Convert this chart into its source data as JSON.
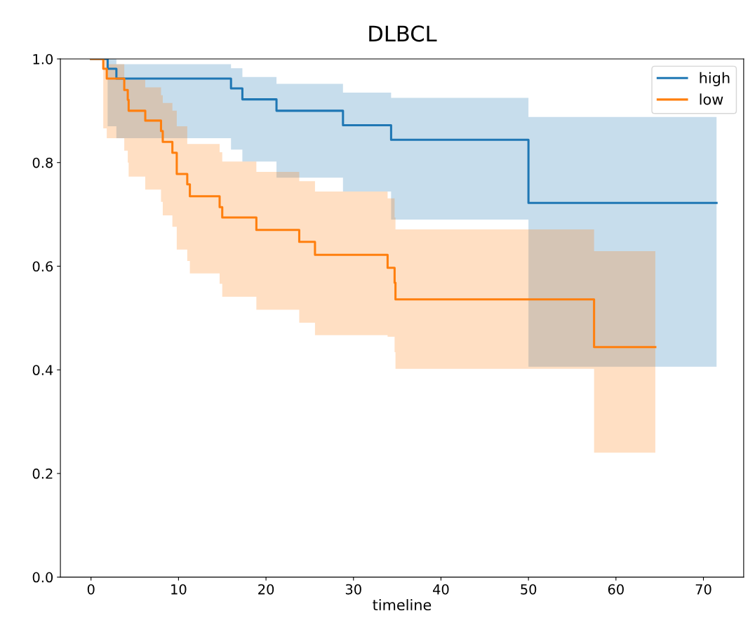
{
  "chart_data": {
    "type": "step",
    "title": "DLBCL",
    "xlabel": "timeline",
    "xlim": [
      -3.5,
      74.6
    ],
    "xticks": [
      0,
      10,
      20,
      30,
      40,
      50,
      60,
      70
    ],
    "ylim": [
      0,
      1
    ],
    "yticks": [
      {
        "value": 0,
        "label": "0.0"
      },
      {
        "value": 0.2,
        "label": "0.2"
      },
      {
        "value": 0.4,
        "label": "0.4"
      },
      {
        "value": 0.6,
        "label": "0.6"
      },
      {
        "value": 0.8,
        "label": "0.8"
      },
      {
        "value": 1,
        "label": "1.0"
      }
    ],
    "grid": false,
    "legend": "top right",
    "line_style": "solid",
    "marker": "none",
    "series": [
      {
        "name": "high",
        "color": "#1f77b4",
        "x": [
          0,
          1.9,
          2.9,
          16.0,
          17.3,
          21.2,
          28.8,
          34.3,
          50.0,
          71.5
        ],
        "values": [
          1.0,
          0.981,
          0.962,
          0.943,
          0.922,
          0.9,
          0.872,
          0.844,
          0.722,
          0.722
        ],
        "upper": [
          1.0,
          1.0,
          0.99,
          0.982,
          0.965,
          0.952,
          0.935,
          0.925,
          0.888,
          0.888
        ],
        "lower": [
          1.0,
          0.87,
          0.847,
          0.825,
          0.802,
          0.771,
          0.744,
          0.69,
          0.406,
          0.406
        ]
      },
      {
        "name": "low",
        "color": "#ff7f0e",
        "x": [
          0,
          1.4,
          1.8,
          3.8,
          4.2,
          4.3,
          6.2,
          8.0,
          8.2,
          9.3,
          9.8,
          11.0,
          11.3,
          14.7,
          15.0,
          18.9,
          23.8,
          25.6,
          33.9,
          34.7,
          34.8,
          57.5,
          64.5
        ],
        "values": [
          1.0,
          0.981,
          0.962,
          0.94,
          0.921,
          0.9,
          0.881,
          0.861,
          0.84,
          0.819,
          0.778,
          0.758,
          0.735,
          0.714,
          0.694,
          0.67,
          0.647,
          0.622,
          0.597,
          0.568,
          0.536,
          0.444,
          0.444
        ],
        "upper": [
          1.0,
          1.0,
          0.99,
          0.96,
          0.96,
          0.96,
          0.945,
          0.93,
          0.915,
          0.9,
          0.87,
          0.836,
          0.836,
          0.82,
          0.802,
          0.782,
          0.764,
          0.744,
          0.731,
          0.694,
          0.671,
          0.629,
          0.629
        ],
        "lower": [
          1.0,
          0.866,
          0.847,
          0.823,
          0.8,
          0.773,
          0.748,
          0.724,
          0.698,
          0.676,
          0.632,
          0.61,
          0.586,
          0.566,
          0.541,
          0.516,
          0.491,
          0.467,
          0.464,
          0.434,
          0.402,
          0.24,
          0.24
        ]
      }
    ]
  }
}
